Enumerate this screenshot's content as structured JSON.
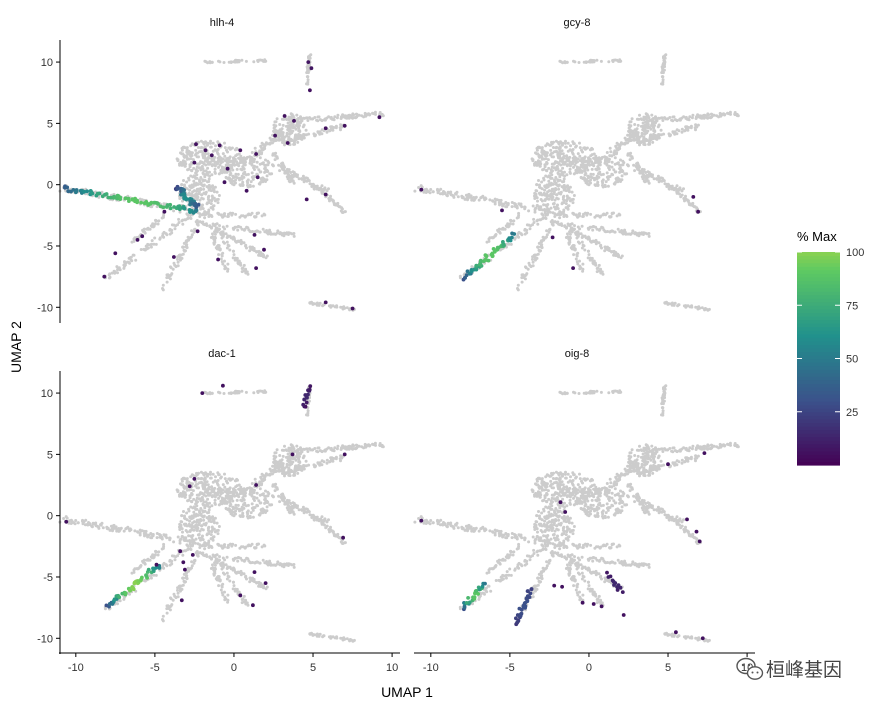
{
  "chart_data": {
    "type": "scatter",
    "xlabel": "UMAP 1",
    "ylabel": "UMAP 2",
    "xlim": [
      -11,
      10.5
    ],
    "ylim": [
      -11.2,
      11.8
    ],
    "x_ticks": [
      -10,
      -5,
      0,
      5,
      10
    ],
    "y_ticks": [
      -10,
      -5,
      0,
      5,
      10
    ],
    "background_color": "#cccccc",
    "colormap": "viridis",
    "legend": {
      "title": "% Max",
      "placement": "right",
      "range": [
        0,
        100
      ],
      "ticks": [
        25,
        50,
        75,
        100
      ]
    },
    "panels": [
      {
        "title": "hlh-4",
        "segments": [
          {
            "x": [
              -10.7,
              -2.2
            ],
            "y": [
              -0.3,
              -2.2
            ],
            "value_range": [
              35,
              90
            ],
            "count": 80
          },
          {
            "x": [
              -3.6,
              -2.4
            ],
            "y": [
              -0.2,
              -1.8
            ],
            "value_range": [
              20,
              60
            ],
            "count": 40
          }
        ],
        "points": [
          {
            "x": 4.7,
            "y": 10.0,
            "value": 8
          },
          {
            "x": 4.9,
            "y": 9.5,
            "value": 8
          },
          {
            "x": 3.2,
            "y": 5.6,
            "value": 6
          },
          {
            "x": 3.8,
            "y": 5.2,
            "value": 6
          },
          {
            "x": 5.8,
            "y": 4.6,
            "value": 6
          },
          {
            "x": 7.0,
            "y": 4.8,
            "value": 6
          },
          {
            "x": 9.2,
            "y": 5.5,
            "value": 6
          },
          {
            "x": 2.6,
            "y": 4.0,
            "value": 6
          },
          {
            "x": 3.4,
            "y": 3.4,
            "value": 6
          },
          {
            "x": -2.4,
            "y": 3.3,
            "value": 6
          },
          {
            "x": -1.8,
            "y": 2.8,
            "value": 6
          },
          {
            "x": -1.4,
            "y": 2.4,
            "value": 6
          },
          {
            "x": -0.9,
            "y": 3.2,
            "value": 6
          },
          {
            "x": 0.4,
            "y": 2.8,
            "value": 6
          },
          {
            "x": -2.5,
            "y": 1.8,
            "value": 6
          },
          {
            "x": -0.4,
            "y": 1.3,
            "value": 6
          },
          {
            "x": 1.4,
            "y": 2.5,
            "value": 6
          },
          {
            "x": -0.6,
            "y": 0.2,
            "value": 6
          },
          {
            "x": 1.5,
            "y": 0.6,
            "value": 6
          },
          {
            "x": 0.8,
            "y": -0.5,
            "value": 6
          },
          {
            "x": 4.6,
            "y": -1.2,
            "value": 6
          },
          {
            "x": 5.8,
            "y": -0.8,
            "value": 6
          },
          {
            "x": -4.4,
            "y": -2.2,
            "value": 6
          },
          {
            "x": -2.3,
            "y": -3.8,
            "value": 6
          },
          {
            "x": -5.8,
            "y": -4.2,
            "value": 6
          },
          {
            "x": -6.1,
            "y": -4.5,
            "value": 6
          },
          {
            "x": -7.5,
            "y": -5.6,
            "value": 6
          },
          {
            "x": -8.2,
            "y": -7.5,
            "value": 6
          },
          {
            "x": -3.8,
            "y": -5.9,
            "value": 6
          },
          {
            "x": -1.0,
            "y": -6.1,
            "value": 6
          },
          {
            "x": 1.3,
            "y": -4.1,
            "value": 6
          },
          {
            "x": 1.9,
            "y": -5.3,
            "value": 6
          },
          {
            "x": 1.4,
            "y": -6.8,
            "value": 6
          },
          {
            "x": 7.5,
            "y": -10.1,
            "value": 6
          },
          {
            "x": 5.8,
            "y": -9.6,
            "value": 6
          },
          {
            "x": 4.8,
            "y": 7.7,
            "value": 6
          }
        ]
      },
      {
        "title": "gcy-8",
        "segments": [
          {
            "x": [
              -7.9,
              -4.8
            ],
            "y": [
              -7.6,
              -4.1
            ],
            "value_range": [
              30,
              90
            ],
            "count": 50
          }
        ],
        "points": [
          {
            "x": -10.6,
            "y": -0.4,
            "value": 6
          },
          {
            "x": -5.5,
            "y": -2.1,
            "value": 6
          },
          {
            "x": -2.3,
            "y": -4.3,
            "value": 6
          },
          {
            "x": -1.0,
            "y": -6.8,
            "value": 6
          },
          {
            "x": 6.6,
            "y": -1.0,
            "value": 6
          },
          {
            "x": 6.9,
            "y": -2.2,
            "value": 6
          }
        ]
      },
      {
        "title": "dac-1",
        "segments": [
          {
            "x": [
              -8.0,
              -4.8
            ],
            "y": [
              -7.4,
              -4.1
            ],
            "value_range": [
              30,
              100
            ],
            "count": 45
          },
          {
            "x": [
              4.4,
              4.8
            ],
            "y": [
              8.8,
              10.5
            ],
            "value_range": [
              5,
              15
            ],
            "count": 14
          }
        ],
        "points": [
          {
            "x": -10.6,
            "y": -0.5,
            "value": 6
          },
          {
            "x": -2.5,
            "y": 3.0,
            "value": 6
          },
          {
            "x": -2.8,
            "y": 2.4,
            "value": 6
          },
          {
            "x": 1.4,
            "y": 2.5,
            "value": 6
          },
          {
            "x": 3.7,
            "y": 5.0,
            "value": 6
          },
          {
            "x": 7.0,
            "y": 5.0,
            "value": 6
          },
          {
            "x": -3.4,
            "y": -2.9,
            "value": 6
          },
          {
            "x": -3.2,
            "y": -3.8,
            "value": 6
          },
          {
            "x": -2.6,
            "y": -3.2,
            "value": 6
          },
          {
            "x": -3.1,
            "y": -4.4,
            "value": 6
          },
          {
            "x": -4.9,
            "y": -4.0,
            "value": 6
          },
          {
            "x": -3.3,
            "y": -6.9,
            "value": 6
          },
          {
            "x": 1.3,
            "y": -4.6,
            "value": 6
          },
          {
            "x": 2.0,
            "y": -5.5,
            "value": 6
          },
          {
            "x": 6.9,
            "y": -1.8,
            "value": 6
          },
          {
            "x": -2.0,
            "y": 10.0,
            "value": 6
          },
          {
            "x": -0.7,
            "y": 10.6,
            "value": 6
          },
          {
            "x": 0.4,
            "y": -6.5,
            "value": 6
          },
          {
            "x": 1.2,
            "y": -7.3,
            "value": 6
          }
        ]
      },
      {
        "title": "oig-8",
        "segments": [
          {
            "x": [
              -8.0,
              -6.6
            ],
            "y": [
              -7.5,
              -5.6
            ],
            "value_range": [
              30,
              90
            ],
            "count": 25
          },
          {
            "x": [
              -4.6,
              -3.7
            ],
            "y": [
              -8.8,
              -6.0
            ],
            "value_range": [
              20,
              30
            ],
            "count": 30
          },
          {
            "x": [
              1.2,
              2.0
            ],
            "y": [
              -4.8,
              -6.1
            ],
            "value_range": [
              8,
              15
            ],
            "count": 12
          }
        ],
        "points": [
          {
            "x": -10.6,
            "y": -0.4,
            "value": 6
          },
          {
            "x": -1.8,
            "y": 1.1,
            "value": 6
          },
          {
            "x": 5.0,
            "y": 4.2,
            "value": 6
          },
          {
            "x": 7.3,
            "y": 5.1,
            "value": 6
          },
          {
            "x": 6.2,
            "y": -0.3,
            "value": 6
          },
          {
            "x": 6.8,
            "y": -1.3,
            "value": 6
          },
          {
            "x": 7.0,
            "y": -2.1,
            "value": 6
          },
          {
            "x": -2.2,
            "y": -5.7,
            "value": 6
          },
          {
            "x": -1.7,
            "y": -5.8,
            "value": 6
          },
          {
            "x": -0.4,
            "y": -7.1,
            "value": 6
          },
          {
            "x": 0.3,
            "y": -7.2,
            "value": 6
          },
          {
            "x": 0.8,
            "y": -7.4,
            "value": 6
          },
          {
            "x": 2.2,
            "y": -8.1,
            "value": 6
          },
          {
            "x": 5.5,
            "y": -9.5,
            "value": 6
          },
          {
            "x": 7.2,
            "y": -10.0,
            "value": 6
          },
          {
            "x": -1.5,
            "y": 0.3,
            "value": 6
          }
        ]
      }
    ]
  },
  "watermark": {
    "text": "桓峰基因",
    "icon": "wechat-icon"
  }
}
